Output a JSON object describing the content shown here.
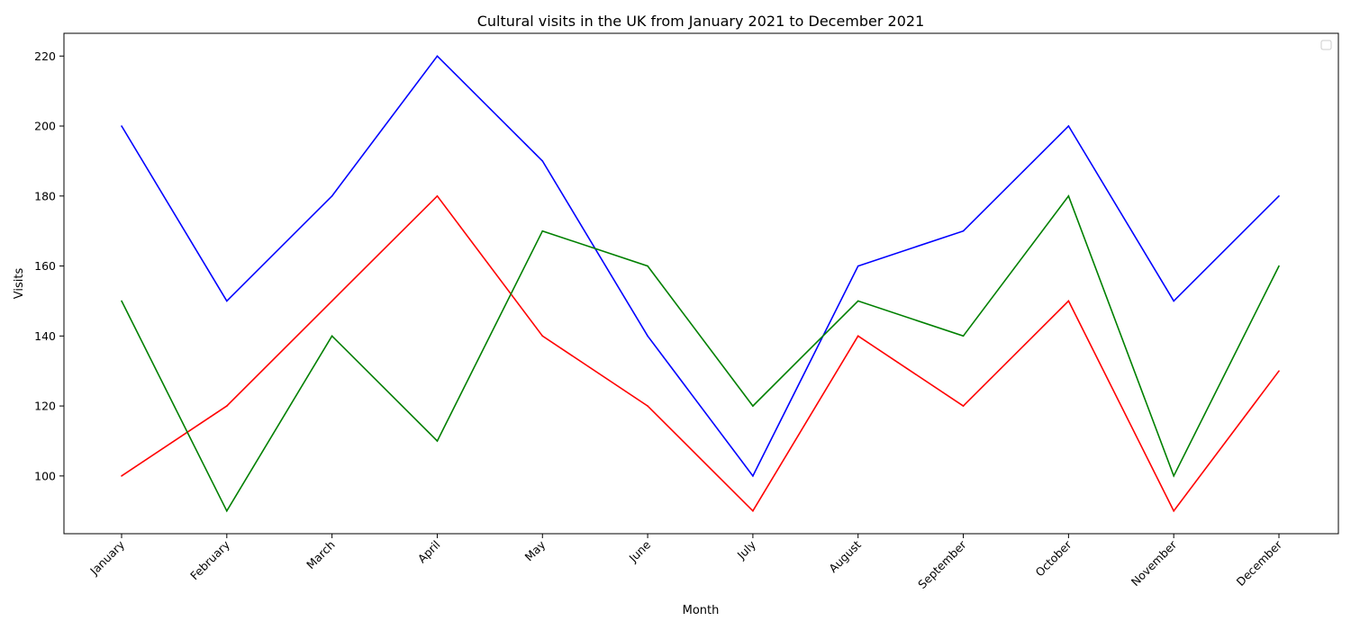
{
  "chart_data": {
    "type": "line",
    "title": "Cultural visits in the UK from January 2021 to December 2021",
    "xlabel": "Month",
    "ylabel": "Visits",
    "categories": [
      "January",
      "February",
      "March",
      "April",
      "May",
      "June",
      "July",
      "August",
      "September",
      "October",
      "November",
      "December"
    ],
    "yticks": [
      100,
      120,
      140,
      160,
      180,
      200,
      220
    ],
    "ylim": [
      83.5,
      226.5
    ],
    "grid": false,
    "legend": "top-right",
    "legend_entries": [],
    "series": [
      {
        "color": "#0000ff",
        "values": [
          200,
          150,
          180,
          220,
          190,
          140,
          100,
          160,
          170,
          200,
          150,
          180
        ]
      },
      {
        "color": "#ff0000",
        "values": [
          100,
          120,
          150,
          180,
          140,
          120,
          90,
          140,
          120,
          150,
          90,
          130
        ]
      },
      {
        "color": "#008000",
        "values": [
          150,
          90,
          140,
          110,
          170,
          160,
          120,
          150,
          140,
          180,
          100,
          160
        ]
      }
    ]
  }
}
